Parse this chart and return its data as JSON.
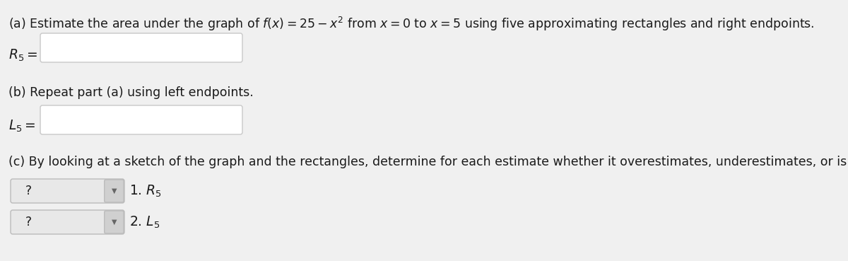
{
  "bg_color": "#f0f0f0",
  "text_color": "#1a1a1a",
  "title_a": "(a) Estimate the area under the graph of $f(x) = 25 - x^2$ from $x = 0$ to $x = 5$ using five approximating rectangles and right endpoints.",
  "label_R5": "$R_5 =$",
  "title_b": "(b) Repeat part (a) using left endpoints.",
  "label_L5": "$L_5 =$",
  "title_c": "(c) By looking at a sketch of the graph and the rectangles, determine for each estimate whether it overestimates, underestimates, or is the exact area.",
  "dropdown_text": "?",
  "item1_label": "1. $R_5$",
  "item2_label": "2. $L_5$",
  "input_box_color": "#ffffff",
  "input_box_border": "#c8c8c8",
  "dropdown_bg": "#e8e8e8",
  "dropdown_arrow_bg": "#d0d0d0",
  "dropdown_border": "#bbbbbb",
  "font_size_main": 12.5,
  "font_size_labels": 13.5
}
